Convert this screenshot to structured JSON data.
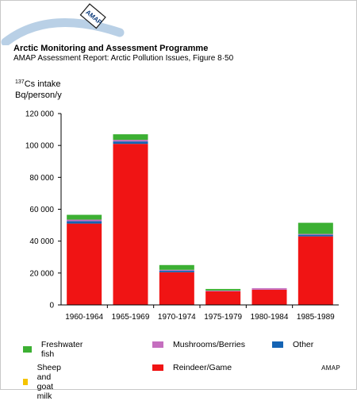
{
  "header": {
    "logo_text": "AMAP",
    "org_title": "Arctic Monitoring and Assessment Programme",
    "report_subtitle": "AMAP Assessment Report: Arctic Pollution Issues, Figure 8·50"
  },
  "footer": {
    "credit": "AMAP"
  },
  "colors": {
    "freshwater_fish": "#3cb033",
    "mushrooms_berries": "#c56fbf",
    "other": "#1564b4",
    "sheep_goat_milk": "#f5c400",
    "reindeer_game": "#f01414"
  },
  "chart_data": {
    "type": "bar",
    "stacked": true,
    "ylabel_superscript": "137",
    "ylabel_line1": "Cs intake",
    "ylabel_line2": "Bq/person/y",
    "ylim": [
      0,
      120000
    ],
    "yticks": [
      "0",
      "20 000",
      "40 000",
      "60 000",
      "80 000",
      "100 000",
      "120 000"
    ],
    "ytick_values": [
      0,
      20000,
      40000,
      60000,
      80000,
      100000,
      120000
    ],
    "categories": [
      "1960-1964",
      "1965-1969",
      "1970-1974",
      "1975-1979",
      "1980-1984",
      "1985-1989"
    ],
    "series": [
      {
        "name": "Reindeer/Game",
        "color": "#f01414",
        "values": [
          51000,
          101000,
          20500,
          8500,
          9500,
          43000
        ]
      },
      {
        "name": "Sheep and goat milk",
        "color": "#f5c400",
        "values": [
          0,
          0,
          0,
          0,
          0,
          0
        ]
      },
      {
        "name": "Other",
        "color": "#1564b4",
        "values": [
          1500,
          1500,
          1000,
          0,
          0,
          1000
        ]
      },
      {
        "name": "Mushrooms/Berries",
        "color": "#c56fbf",
        "values": [
          1000,
          1000,
          500,
          500,
          1000,
          500
        ]
      },
      {
        "name": "Freshwater fish",
        "color": "#3cb033",
        "values": [
          3000,
          3500,
          3000,
          1000,
          0,
          7000
        ]
      }
    ],
    "grid": false,
    "legend_placement": "bottom"
  },
  "legend": [
    {
      "label": "Freshwater fish",
      "color": "#3cb033"
    },
    {
      "label": "Mushrooms/Berries",
      "color": "#c56fbf"
    },
    {
      "label": "Other",
      "color": "#1564b4"
    },
    {
      "label": "Sheep and goat milk",
      "color": "#f5c400"
    },
    {
      "label": "Reindeer/Game",
      "color": "#f01414"
    }
  ]
}
